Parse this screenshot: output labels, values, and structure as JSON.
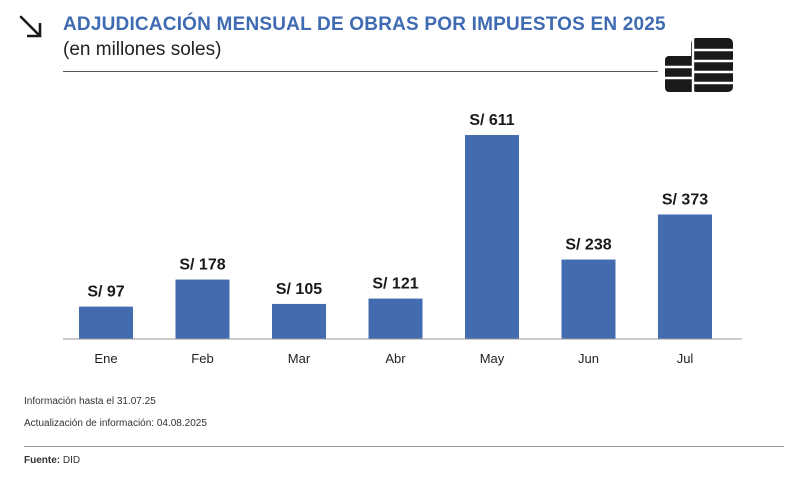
{
  "header": {
    "title": "ADJUDICACIÓN MENSUAL DE OBRAS POR IMPUESTOS EN 2025",
    "subtitle": "(en millones soles)"
  },
  "icons": {
    "arrow": "arrow-down-right-icon",
    "coins": "coins-stack-icon"
  },
  "colors": {
    "accent": "#3f6bb3",
    "bar": "#436bb0",
    "text": "#222222"
  },
  "chart_data": {
    "type": "bar",
    "title": "ADJUDICACIÓN MENSUAL DE OBRAS POR IMPUESTOS EN 2025",
    "subtitle": "(en millones soles)",
    "categories": [
      "Ene",
      "Feb",
      "Mar",
      "Abr",
      "May",
      "Jun",
      "Jul"
    ],
    "values": [
      97,
      178,
      105,
      121,
      611,
      238,
      373
    ],
    "value_labels": [
      "S/ 97",
      "S/ 178",
      "S/ 105",
      "S/ 121",
      "S/ 611",
      "S/ 238",
      "S/ 373"
    ],
    "ylim": [
      0,
      640
    ],
    "grid": false,
    "legend": "none"
  },
  "notes": {
    "info_until": "Información hasta el 31.07.25",
    "updated": "Actualización de información: 04.08.2025"
  },
  "source": {
    "label": "Fuente:",
    "value": " DID"
  }
}
